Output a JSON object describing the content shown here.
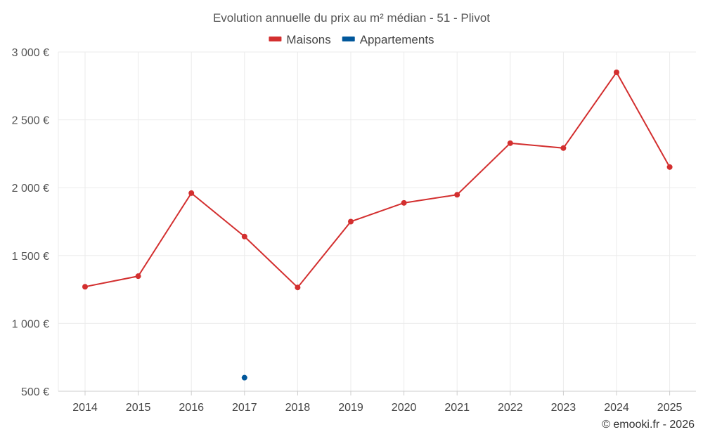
{
  "chart_data": {
    "type": "line",
    "title": "Evolution annuelle du prix au m² médian - 51 - Plivot",
    "x": [
      "2014",
      "2015",
      "2016",
      "2017",
      "2018",
      "2019",
      "2020",
      "2021",
      "2022",
      "2023",
      "2024",
      "2025"
    ],
    "ylim": [
      500,
      3000
    ],
    "yticks": [
      500,
      1000,
      1500,
      2000,
      2500,
      3000
    ],
    "ytick_labels": [
      "500 €",
      "1 000 €",
      "1 500 €",
      "2 000 €",
      "2 500 €",
      "3 000 €"
    ],
    "grid": true,
    "legend_position": "top-center",
    "series": [
      {
        "name": "Maisons",
        "color": "#d32f2f",
        "values": [
          1270,
          1348,
          1960,
          1640,
          1265,
          1750,
          1888,
          1948,
          2328,
          2292,
          2850,
          2152
        ]
      },
      {
        "name": "Appartements",
        "color": "#01579b",
        "values": [
          null,
          null,
          null,
          600,
          null,
          null,
          null,
          null,
          null,
          null,
          null,
          null
        ]
      }
    ],
    "credit": "© emooki.fr - 2026"
  }
}
